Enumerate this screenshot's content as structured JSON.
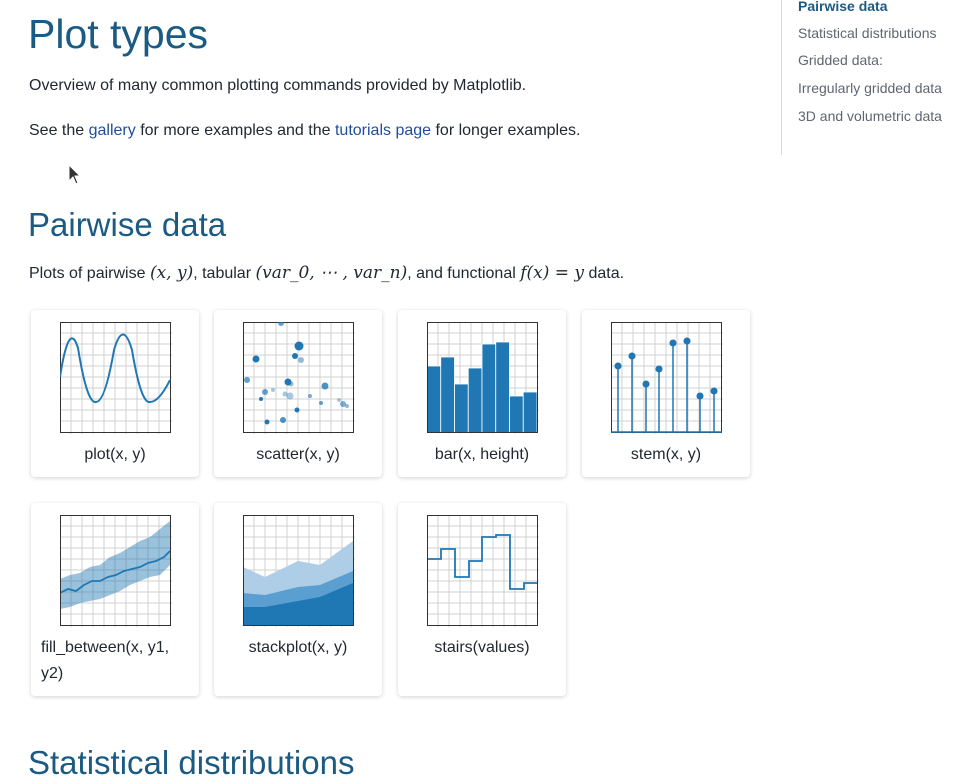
{
  "page": {
    "title": "Plot types",
    "intro": "Overview of many common plotting commands provided by Matplotlib.",
    "see_prefix": "See the ",
    "gallery_link": "gallery",
    "see_middle": " for more examples and the ",
    "tutorials_link": "tutorials page",
    "see_suffix": " for longer examples."
  },
  "toc": {
    "items": [
      "Pairwise data",
      "Statistical distributions",
      "Gridded data:",
      "Irregularly gridded data",
      "3D and volumetric data"
    ],
    "active_index": 0
  },
  "pairwise": {
    "heading": "Pairwise data",
    "desc_prefix": "Plots of pairwise ",
    "math_xy": "(x, y)",
    "desc_mid1": ", tabular ",
    "math_tab": "(var_0, ⋯ , var_n)",
    "desc_mid2": ", and functional ",
    "math_fn": "f(x) = y",
    "desc_suffix": " data.",
    "cards": [
      {
        "caption": "plot(x, y)",
        "icon": "line-plot-thumbnail"
      },
      {
        "caption": "scatter(x, y)",
        "icon": "scatter-plot-thumbnail"
      },
      {
        "caption": "bar(x, height)",
        "icon": "bar-chart-thumbnail"
      },
      {
        "caption": "stem(x, y)",
        "icon": "stem-plot-thumbnail"
      },
      {
        "caption": "fill_between(x, y1, y2)",
        "icon": "fill-between-thumbnail"
      },
      {
        "caption": "stackplot(x, y)",
        "icon": "stackplot-thumbnail"
      },
      {
        "caption": "stairs(values)",
        "icon": "stairs-plot-thumbnail"
      }
    ]
  },
  "next_section": {
    "heading": "Statistical distributions"
  },
  "colors": {
    "accent": "#1b5a82",
    "link": "#1f4e9c",
    "plot_blue": "#1f77b4"
  }
}
